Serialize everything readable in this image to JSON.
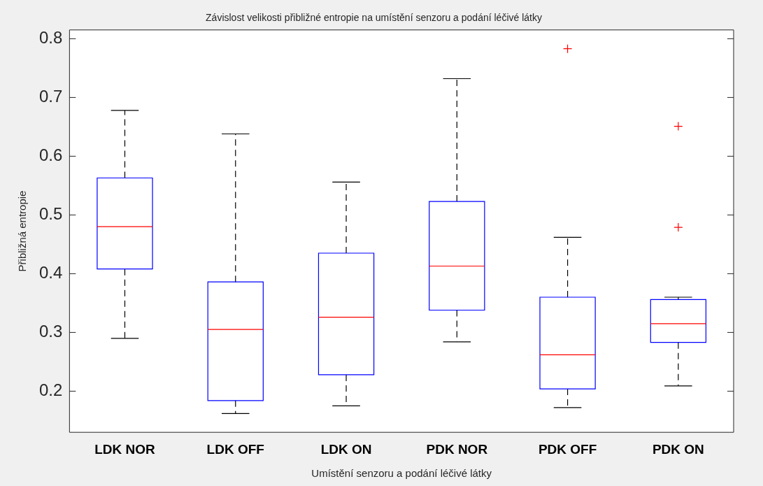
{
  "chart_data": {
    "type": "box",
    "title": "Závislost velikosti přibližné entropie na umístění senzoru a podání léčivé látky",
    "xlabel": "Umístění senzoru a podání léčivé látky",
    "ylabel": "Přibližná entropie",
    "categories": [
      "LDK NOR",
      "LDK OFF",
      "LDK ON",
      "PDK NOR",
      "PDK OFF",
      "PDK ON"
    ],
    "series": [
      {
        "color": "#0000ff",
        "boxes": [
          {
            "low": 0.29,
            "q1": 0.408,
            "median": 0.48,
            "q3": 0.563,
            "high": 0.678
          },
          {
            "low": 0.162,
            "q1": 0.184,
            "median": 0.305,
            "q3": 0.386,
            "high": 0.638
          },
          {
            "low": 0.175,
            "q1": 0.228,
            "median": 0.326,
            "q3": 0.435,
            "high": 0.556
          },
          {
            "low": 0.284,
            "q1": 0.338,
            "median": 0.413,
            "q3": 0.523,
            "high": 0.732
          },
          {
            "low": 0.172,
            "q1": 0.204,
            "median": 0.262,
            "q3": 0.36,
            "high": 0.462,
            "outliers": [
              0.783
            ]
          },
          {
            "low": 0.209,
            "q1": 0.283,
            "median": 0.315,
            "q3": 0.356,
            "high": 0.36,
            "outliers": [
              0.651,
              0.479
            ]
          }
        ]
      }
    ],
    "ylim": [
      0.13,
      0.815
    ],
    "yticks": [
      0.2,
      0.3,
      0.4,
      0.5,
      0.6,
      0.7,
      0.8
    ],
    "grid": false,
    "legend": false
  }
}
